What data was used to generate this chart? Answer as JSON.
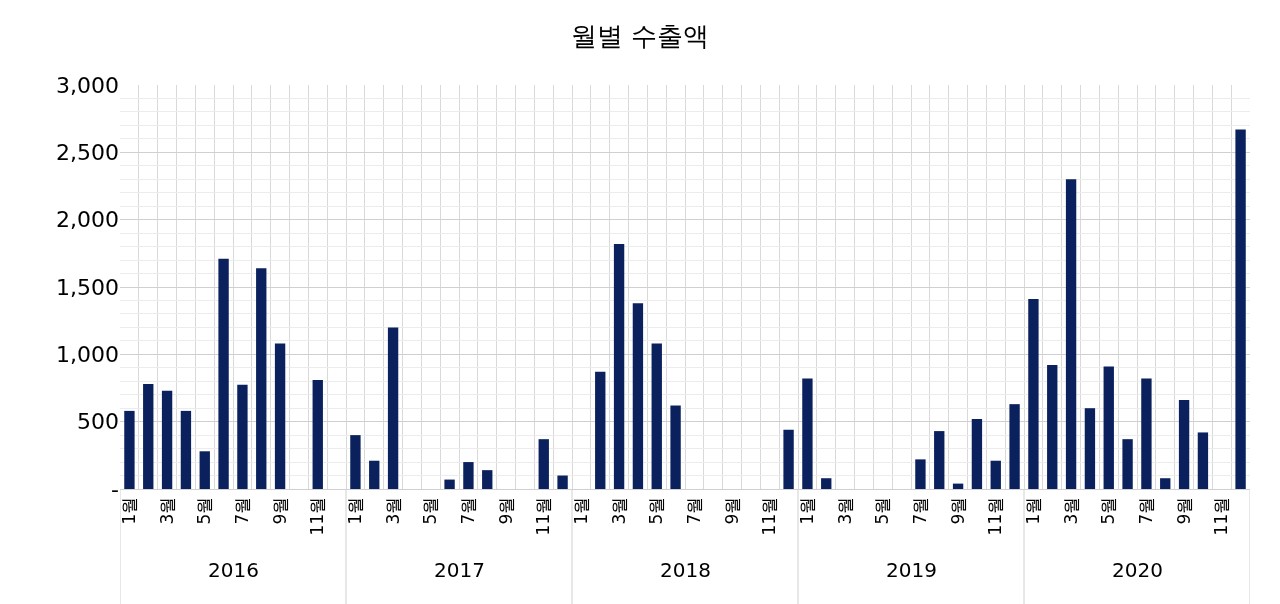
{
  "chart_data": {
    "type": "bar",
    "title": "월별 수출액",
    "categories": [
      "1월",
      null,
      "3월",
      null,
      "5월",
      null,
      "7월",
      null,
      "9월",
      null,
      "11월",
      null,
      "1월",
      null,
      "3월",
      null,
      "5월",
      null,
      "7월",
      null,
      "9월",
      null,
      "11월",
      null,
      "1월",
      null,
      "3월",
      null,
      "5월",
      null,
      "7월",
      null,
      "9월",
      null,
      "11월",
      null,
      "1월",
      null,
      "3월",
      null,
      "5월",
      null,
      "7월",
      null,
      "9월",
      null,
      "11월",
      null,
      "1월",
      null,
      "3월",
      null,
      "5월",
      null,
      "7월",
      null,
      "9월",
      null,
      "11월",
      null
    ],
    "values": [
      580,
      780,
      730,
      580,
      280,
      1710,
      775,
      1640,
      1080,
      0,
      810,
      0,
      400,
      210,
      1200,
      0,
      0,
      70,
      200,
      140,
      0,
      0,
      370,
      100,
      0,
      870,
      1820,
      1380,
      1080,
      620,
      0,
      0,
      0,
      0,
      0,
      440,
      820,
      80,
      0,
      0,
      0,
      0,
      220,
      430,
      40,
      520,
      210,
      630,
      1410,
      920,
      2300,
      600,
      910,
      370,
      820,
      80,
      660,
      420,
      0,
      2670
    ],
    "color": "#0b215e",
    "ylim": [
      0,
      3000
    ],
    "yticks": [
      {
        "value": 0,
        "label": "-"
      },
      {
        "value": 500,
        "label": "500"
      },
      {
        "value": 1000,
        "label": "1,000"
      },
      {
        "value": 1500,
        "label": "1,500"
      },
      {
        "value": 2000,
        "label": "2,000"
      },
      {
        "value": 2500,
        "label": "2,500"
      },
      {
        "value": 3000,
        "label": "3,000"
      }
    ],
    "annotations": [
      "2016",
      "2017",
      "2018",
      "2019",
      "2020"
    ],
    "grid": true
  }
}
